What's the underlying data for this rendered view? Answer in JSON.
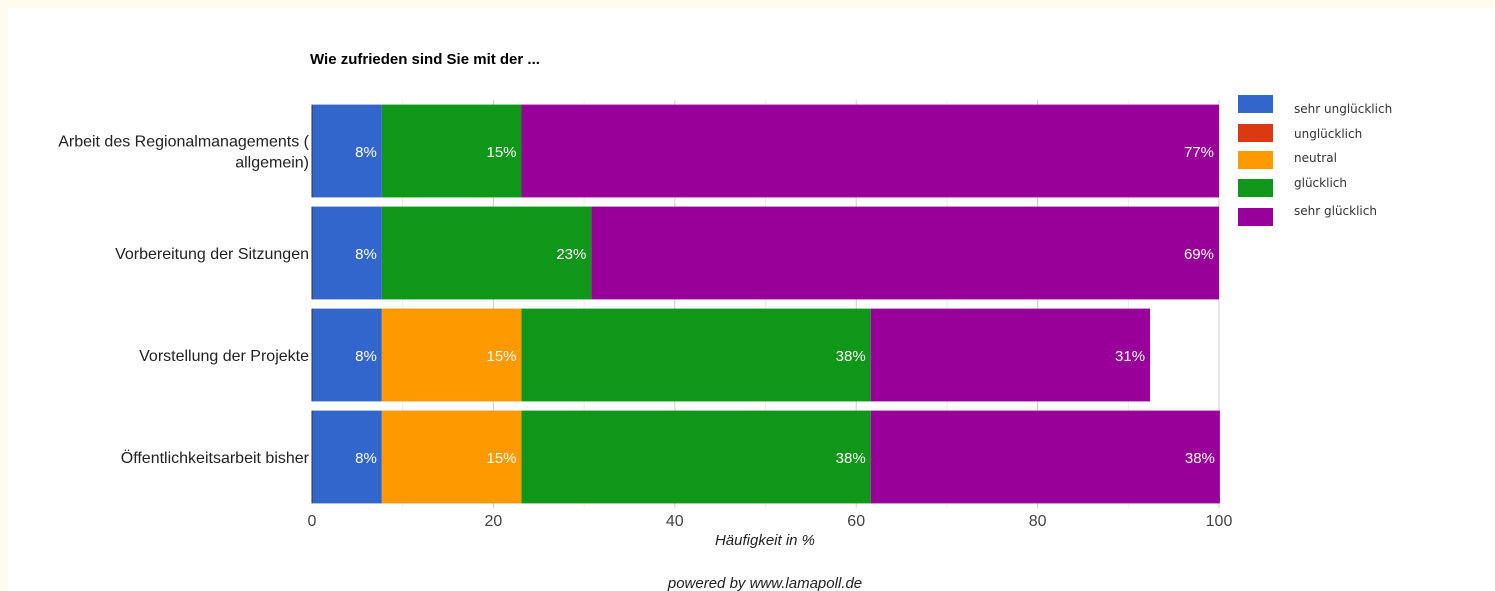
{
  "chart_data": {
    "type": "bar",
    "orientation": "horizontal",
    "stacked": true,
    "title": "Wie zufrieden sind Sie mit der ...",
    "xlabel": "Häufigkeit in %",
    "ylabel": "",
    "xlim": [
      0,
      100
    ],
    "x_ticks": [
      "0",
      "20",
      "40",
      "60",
      "80",
      "100"
    ],
    "grid": true,
    "legend_position": "right",
    "categories": [
      [
        "Arbeit des Regionalmanagements (",
        "allgemein)"
      ],
      [
        "Vorbereitung der Sitzungen"
      ],
      [
        "Vorstellung der Projekte"
      ],
      [
        "Öffentlichkeitsarbeit bisher"
      ]
    ],
    "series": [
      {
        "name": "sehr unglücklich",
        "color": "#3366cc",
        "values": [
          7.7,
          7.7,
          7.7,
          7.7
        ],
        "labels": [
          "8%",
          "8%",
          "8%",
          "8%"
        ]
      },
      {
        "name": "unglücklich",
        "color": "#dc3912",
        "values": [
          0,
          0,
          0,
          0
        ],
        "labels": [
          "",
          "",
          "",
          ""
        ]
      },
      {
        "name": "neutral",
        "color": "#ff9900",
        "values": [
          0,
          0,
          15.4,
          15.4
        ],
        "labels": [
          "",
          "",
          "15%",
          "15%"
        ]
      },
      {
        "name": "glücklich",
        "color": "#109618",
        "values": [
          15.4,
          23.1,
          38.5,
          38.5
        ],
        "labels": [
          "15%",
          "23%",
          "38%",
          "38%"
        ]
      },
      {
        "name": "sehr glücklich",
        "color": "#990099",
        "values": [
          76.9,
          69.2,
          30.8,
          38.5
        ],
        "labels": [
          "77%",
          "69%",
          "31%",
          "38%"
        ]
      }
    ]
  },
  "footer": {
    "credit": "powered by www.lamapoll.de"
  }
}
